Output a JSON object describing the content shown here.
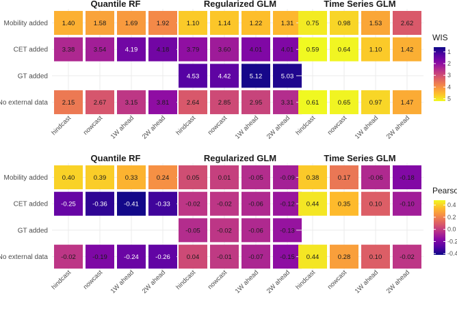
{
  "chart_data": [
    {
      "type": "heatmap",
      "metric": "WIS",
      "rows": [
        "Mobility added",
        "CET added",
        "GT added",
        "No external data"
      ],
      "columns": [
        "hindcast",
        "nowcast",
        "1W ahead",
        "2W ahead"
      ],
      "legend": {
        "title": "WIS",
        "range": [
          0.6,
          5.2
        ],
        "ticks": [
          1,
          2,
          3,
          4,
          5
        ],
        "tick_labels": [
          "1",
          "2",
          "3",
          "4",
          "5"
        ]
      },
      "panels": [
        {
          "title": "Quantile RF",
          "values": [
            [
              "1.40",
              "1.58",
              "1.69",
              "1.92"
            ],
            [
              "3.38",
              "3.54",
              "4.19",
              "4.18"
            ],
            null,
            [
              "2.15",
              "2.67",
              "3.15",
              "3.81"
            ]
          ]
        },
        {
          "title": "Regularized GLM",
          "values": [
            [
              "1.10",
              "1.14",
              "1.22",
              "1.31"
            ],
            [
              "3.79",
              "3.60",
              "4.01",
              "4.01"
            ],
            [
              "4.53",
              "4.42",
              "5.12",
              "5.03"
            ],
            [
              "2.64",
              "2.85",
              "2.95",
              "3.31"
            ]
          ]
        },
        {
          "title": "Time Series GLM",
          "values": [
            [
              "0.75",
              "0.98",
              "1.53",
              "2.62"
            ],
            [
              "0.59",
              "0.64",
              "1.10",
              "1.42"
            ],
            null,
            [
              "0.61",
              "0.65",
              "0.97",
              "1.47"
            ]
          ]
        }
      ]
    },
    {
      "type": "heatmap",
      "metric": "Pearson",
      "rows": [
        "Mobility added",
        "CET added",
        "GT added",
        "No external data"
      ],
      "columns": [
        "hindcast",
        "nowcast",
        "1W ahead",
        "2W ahead"
      ],
      "legend": {
        "title": "Pearson",
        "range": [
          -0.42,
          0.48
        ],
        "ticks": [
          0.4,
          0.2,
          0.0,
          -0.2,
          -0.4
        ],
        "tick_labels": [
          "0.4",
          "0.2",
          "0.0",
          "-0.2",
          "-0.4"
        ]
      },
      "panels": [
        {
          "title": "Quantile RF",
          "values": [
            [
              "0.40",
              "0.39",
              "0.33",
              "0.24"
            ],
            [
              "-0.25",
              "-0.36",
              "-0.41",
              "-0.33"
            ],
            null,
            [
              "-0.02",
              "-0.19",
              "-0.24",
              "-0.26"
            ]
          ]
        },
        {
          "title": "Regularized GLM",
          "values": [
            [
              "0.05",
              "0.01",
              "-0.05",
              "-0.09"
            ],
            [
              "-0.02",
              "-0.02",
              "-0.06",
              "-0.12"
            ],
            [
              "-0.05",
              "-0.02",
              "-0.06",
              "-0.13"
            ],
            [
              "0.04",
              "-0.01",
              "-0.07",
              "-0.15"
            ]
          ]
        },
        {
          "title": "Time Series GLM",
          "values": [
            [
              "0.38",
              "0.17",
              "-0.06",
              "-0.18"
            ],
            [
              "0.44",
              "0.35",
              "0.10",
              "-0.10"
            ],
            null,
            [
              "0.44",
              "0.28",
              "0.10",
              "-0.02"
            ]
          ]
        }
      ]
    }
  ]
}
